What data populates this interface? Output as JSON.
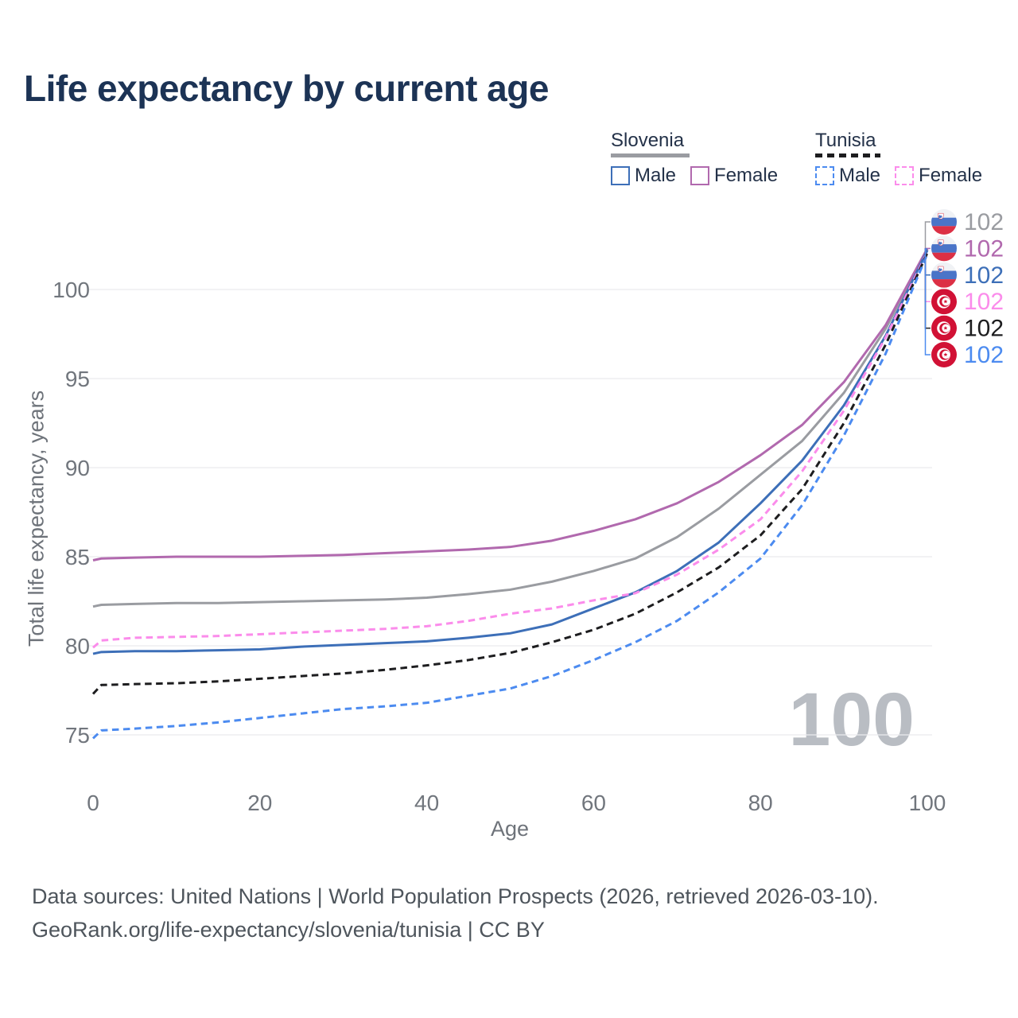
{
  "title": "Life expectancy by current age",
  "legend": {
    "groups": [
      {
        "country": "Slovenia",
        "line_style": "solid",
        "line_color": "#9a9ca1",
        "items": [
          {
            "label": "Male",
            "color": "#3d6fb8"
          },
          {
            "label": "Female",
            "color": "#b169ae"
          }
        ]
      },
      {
        "country": "Tunisia",
        "line_style": "dashed",
        "line_color": "#1d1d1f",
        "items": [
          {
            "label": "Male",
            "color": "#4c8bf0"
          },
          {
            "label": "Female",
            "color": "#fb8ceb"
          }
        ]
      }
    ]
  },
  "chart_data": {
    "type": "line",
    "title": "Life expectancy by current age",
    "xlabel": "Age",
    "ylabel": "Total life expectancy, years",
    "xlim": [
      0,
      100
    ],
    "ylim": [
      73,
      104
    ],
    "xticks": [
      0,
      20,
      40,
      60,
      80,
      100
    ],
    "yticks": [
      75,
      80,
      85,
      90,
      95,
      100
    ],
    "grid": "horizontal",
    "legend_position": "top-right",
    "hover_age": "100",
    "x": [
      0,
      1,
      5,
      10,
      15,
      20,
      25,
      30,
      35,
      40,
      45,
      50,
      55,
      60,
      65,
      70,
      75,
      80,
      85,
      90,
      95,
      100
    ],
    "series": [
      {
        "name": "Slovenia (both sexes)",
        "country": "Slovenia",
        "flag": "si",
        "color": "#9a9ca1",
        "dash": "solid",
        "end_label": "102",
        "values": [
          82.2,
          82.3,
          82.35,
          82.4,
          82.4,
          82.45,
          82.5,
          82.55,
          82.6,
          82.7,
          82.9,
          83.15,
          83.6,
          84.2,
          84.9,
          86.1,
          87.7,
          89.6,
          91.5,
          94.2,
          97.8,
          102.25
        ]
      },
      {
        "name": "Slovenia Female",
        "country": "Slovenia",
        "flag": "si",
        "color": "#b169ae",
        "dash": "solid",
        "end_label": "102",
        "values": [
          84.8,
          84.9,
          84.95,
          85.0,
          85.0,
          85.0,
          85.05,
          85.1,
          85.2,
          85.3,
          85.4,
          85.55,
          85.9,
          86.45,
          87.1,
          88.0,
          89.2,
          90.7,
          92.4,
          94.8,
          98.0,
          102.3
        ]
      },
      {
        "name": "Slovenia Male",
        "country": "Slovenia",
        "flag": "si",
        "color": "#3d6fb8",
        "dash": "solid",
        "end_label": "102",
        "values": [
          79.55,
          79.65,
          79.7,
          79.7,
          79.75,
          79.8,
          79.95,
          80.05,
          80.15,
          80.25,
          80.45,
          80.7,
          81.2,
          82.1,
          83.0,
          84.2,
          85.8,
          88.0,
          90.4,
          93.5,
          97.4,
          102.2
        ]
      },
      {
        "name": "Tunisia Female",
        "country": "Tunisia",
        "flag": "tn",
        "color": "#fb8ceb",
        "dash": "dashed",
        "end_label": "102",
        "values": [
          79.9,
          80.3,
          80.45,
          80.5,
          80.55,
          80.65,
          80.75,
          80.85,
          80.95,
          81.1,
          81.4,
          81.8,
          82.1,
          82.55,
          82.95,
          84.0,
          85.4,
          87.1,
          89.8,
          93.2,
          97.3,
          102.1
        ]
      },
      {
        "name": "Tunisia (both sexes)",
        "country": "Tunisia",
        "flag": "tn",
        "color": "#1d1d1f",
        "dash": "dashed",
        "end_label": "102",
        "values": [
          77.3,
          77.8,
          77.85,
          77.9,
          78.0,
          78.15,
          78.3,
          78.45,
          78.65,
          78.9,
          79.2,
          79.6,
          80.2,
          80.9,
          81.8,
          83.0,
          84.4,
          86.2,
          88.8,
          92.5,
          96.9,
          102.05
        ]
      },
      {
        "name": "Tunisia Male",
        "country": "Tunisia",
        "flag": "tn",
        "color": "#4c8bf0",
        "dash": "dashed",
        "end_label": "102",
        "values": [
          74.8,
          75.25,
          75.35,
          75.5,
          75.7,
          75.95,
          76.2,
          76.45,
          76.6,
          76.8,
          77.2,
          77.6,
          78.3,
          79.2,
          80.2,
          81.4,
          83.0,
          84.9,
          87.9,
          91.8,
          96.4,
          102.0
        ]
      }
    ]
  },
  "watermark": "100",
  "footer": {
    "line1": "Data sources: United Nations | World Population Prospects (2026, retrieved 2026-03-10).",
    "line2": "GeoRank.org/life-expectancy/slovenia/tunisia | CC BY"
  }
}
